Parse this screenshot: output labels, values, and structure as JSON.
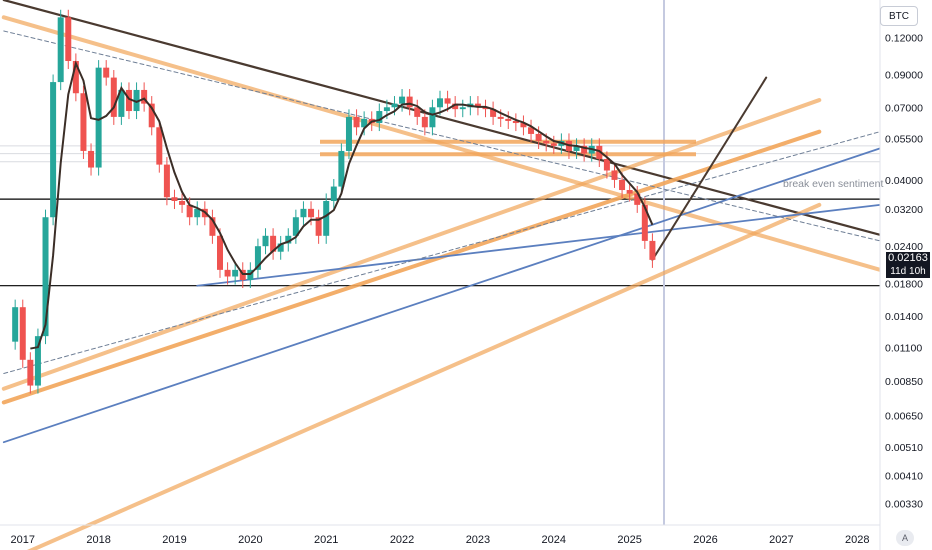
{
  "symbol_badge": "BTC",
  "scale_badge": "A",
  "chart_data": {
    "type": "candlestick",
    "y_scale": "log",
    "ylim": [
      0.0028,
      0.16
    ],
    "xlim": [
      2016.7,
      2028.3
    ],
    "y_ticks": [
      "0.12000",
      "0.09000",
      "0.07000",
      "0.05500",
      "0.04000",
      "0.03200",
      "0.02400",
      "0.01800",
      "0.01400",
      "0.01100",
      "0.00850",
      "0.00650",
      "0.00510",
      "0.00410",
      "0.00330"
    ],
    "x_ticks": [
      "2017",
      "2018",
      "2019",
      "2020",
      "2021",
      "2022",
      "2023",
      "2024",
      "2025",
      "2026",
      "2027",
      "2028"
    ],
    "price_label": "0.02163",
    "countdown_label": "11d 10h",
    "annotation": "break even sentiment",
    "colors": {
      "up": "#26a69a",
      "down": "#ef5350",
      "trendline_dark": "#4a3a30",
      "trendline_orange": "#f2a65a",
      "trendline_blue": "#5b7fbf",
      "ma_dark": "#3b2e27",
      "cloud": "#f5c6c6"
    },
    "price_path": [
      [
        2016.75,
        0.0115
      ],
      [
        2016.9,
        0.015
      ],
      [
        2017.0,
        0.01
      ],
      [
        2017.1,
        0.0082
      ],
      [
        2017.2,
        0.012
      ],
      [
        2017.3,
        0.03
      ],
      [
        2017.4,
        0.085
      ],
      [
        2017.5,
        0.14
      ],
      [
        2017.6,
        0.1
      ],
      [
        2017.7,
        0.078
      ],
      [
        2017.8,
        0.05
      ],
      [
        2017.9,
        0.044
      ],
      [
        2018.0,
        0.095
      ],
      [
        2018.1,
        0.088
      ],
      [
        2018.2,
        0.065
      ],
      [
        2018.3,
        0.08
      ],
      [
        2018.4,
        0.068
      ],
      [
        2018.5,
        0.08
      ],
      [
        2018.6,
        0.072
      ],
      [
        2018.7,
        0.06
      ],
      [
        2018.8,
        0.045
      ],
      [
        2018.9,
        0.035
      ],
      [
        2019.0,
        0.034
      ],
      [
        2019.1,
        0.033
      ],
      [
        2019.2,
        0.03
      ],
      [
        2019.3,
        0.032
      ],
      [
        2019.4,
        0.03
      ],
      [
        2019.5,
        0.026
      ],
      [
        2019.6,
        0.02
      ],
      [
        2019.7,
        0.019
      ],
      [
        2019.8,
        0.02
      ],
      [
        2019.9,
        0.0185
      ],
      [
        2020.0,
        0.02
      ],
      [
        2020.1,
        0.024
      ],
      [
        2020.2,
        0.026
      ],
      [
        2020.3,
        0.023
      ],
      [
        2020.4,
        0.0245
      ],
      [
        2020.5,
        0.026
      ],
      [
        2020.6,
        0.03
      ],
      [
        2020.7,
        0.032
      ],
      [
        2020.8,
        0.03
      ],
      [
        2020.9,
        0.026
      ],
      [
        2021.0,
        0.034
      ],
      [
        2021.1,
        0.038
      ],
      [
        2021.2,
        0.05
      ],
      [
        2021.3,
        0.065
      ],
      [
        2021.4,
        0.06
      ],
      [
        2021.5,
        0.064
      ],
      [
        2021.6,
        0.062
      ],
      [
        2021.7,
        0.068
      ],
      [
        2021.8,
        0.07
      ],
      [
        2021.9,
        0.072
      ],
      [
        2022.0,
        0.076
      ],
      [
        2022.1,
        0.07
      ],
      [
        2022.2,
        0.065
      ],
      [
        2022.3,
        0.06
      ],
      [
        2022.4,
        0.07
      ],
      [
        2022.5,
        0.075
      ],
      [
        2022.6,
        0.072
      ],
      [
        2022.7,
        0.069
      ],
      [
        2022.8,
        0.07
      ],
      [
        2022.9,
        0.072
      ],
      [
        2023.0,
        0.07
      ],
      [
        2023.1,
        0.069
      ],
      [
        2023.2,
        0.065
      ],
      [
        2023.3,
        0.064
      ],
      [
        2023.4,
        0.063
      ],
      [
        2023.5,
        0.062
      ],
      [
        2023.6,
        0.06
      ],
      [
        2023.7,
        0.057
      ],
      [
        2023.8,
        0.054
      ],
      [
        2023.9,
        0.053
      ],
      [
        2024.0,
        0.052
      ],
      [
        2024.1,
        0.054
      ],
      [
        2024.2,
        0.05
      ],
      [
        2024.3,
        0.052
      ],
      [
        2024.4,
        0.049
      ],
      [
        2024.5,
        0.052
      ],
      [
        2024.6,
        0.047
      ],
      [
        2024.7,
        0.043
      ],
      [
        2024.8,
        0.04
      ],
      [
        2024.9,
        0.037
      ],
      [
        2025.0,
        0.036
      ],
      [
        2025.1,
        0.033
      ],
      [
        2025.2,
        0.025
      ],
      [
        2025.3,
        0.0216
      ]
    ]
  }
}
